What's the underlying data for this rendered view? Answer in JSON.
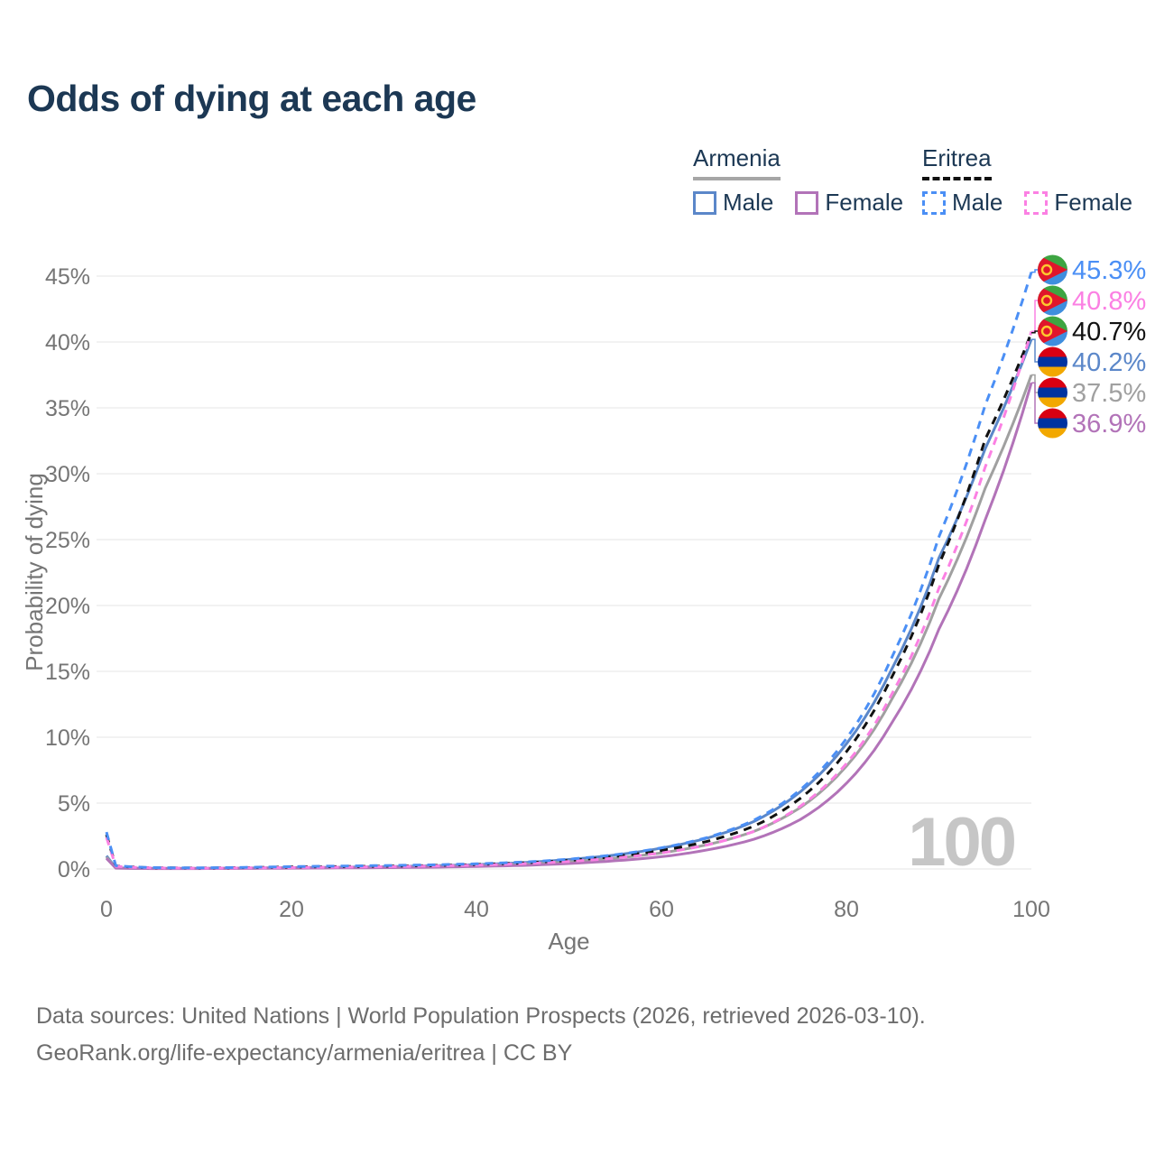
{
  "title": "Odds of dying at each age",
  "watermark": "100",
  "colors": {
    "title": "#1c3854",
    "axis_text": "#757575",
    "gridline": "#e9e9e9",
    "watermark": "#c6c6c6",
    "armenia_underline": "#a6a6a6",
    "eritrea_underline": "#111111"
  },
  "legend": {
    "groups": [
      {
        "label": "Armenia",
        "underline_style": "solid",
        "underline_color": "#a6a6a6",
        "items": [
          {
            "label": "Male",
            "color": "#5b87c9",
            "dash": false
          },
          {
            "label": "Female",
            "color": "#b273b8",
            "dash": false
          }
        ]
      },
      {
        "label": "Eritrea",
        "underline_style": "dashed",
        "underline_color": "#111111",
        "items": [
          {
            "label": "Male",
            "color": "#4b8ff5",
            "dash": true
          },
          {
            "label": "Female",
            "color": "#fb80e3",
            "dash": true
          }
        ]
      }
    ]
  },
  "footer": {
    "line1": "Data sources: United Nations | World Population Prospects (2026, retrieved 2026-03-10).",
    "line2": "GeoRank.org/life-expectancy/armenia/eritrea | CC BY"
  },
  "chart_data": {
    "type": "line",
    "title": "Odds of dying at each age",
    "xlabel": "Age",
    "ylabel": "Probability of dying",
    "xlim": [
      0,
      100
    ],
    "ylim_pct": [
      0,
      47
    ],
    "x_ticks": [
      0,
      20,
      40,
      60,
      80,
      100
    ],
    "y_ticks_pct": [
      0,
      5,
      10,
      15,
      20,
      25,
      30,
      35,
      40,
      45
    ],
    "grid": "horizontal-only",
    "legend_position": "top-right",
    "highlighted_age": "100",
    "x": [
      0,
      1,
      5,
      10,
      15,
      20,
      25,
      30,
      35,
      40,
      45,
      50,
      55,
      60,
      65,
      70,
      75,
      80,
      85,
      90,
      95,
      100
    ],
    "series": [
      {
        "name": "Eritrea Male",
        "slug": "eritrea-male",
        "country": "eritrea",
        "style": "dashed",
        "color": "#4b8ff5",
        "end_label": "45.3%",
        "values": [
          2.8,
          0.25,
          0.1,
          0.08,
          0.12,
          0.18,
          0.22,
          0.26,
          0.31,
          0.39,
          0.52,
          0.74,
          1.08,
          1.6,
          2.4,
          3.7,
          6.0,
          9.9,
          16.2,
          25.2,
          35.2,
          45.3
        ]
      },
      {
        "name": "Eritrea Female",
        "slug": "eritrea-female",
        "country": "eritrea",
        "style": "dashed",
        "color": "#fb80e3",
        "end_label": "40.8%",
        "values": [
          2.4,
          0.2,
          0.08,
          0.06,
          0.08,
          0.11,
          0.14,
          0.17,
          0.22,
          0.29,
          0.4,
          0.57,
          0.83,
          1.22,
          1.83,
          2.85,
          4.75,
          8.0,
          13.4,
          21.3,
          30.5,
          40.8
        ]
      },
      {
        "name": "Eritrea Both sexes",
        "slug": "eritrea-both",
        "country": "eritrea",
        "style": "dashed",
        "color": "#111111",
        "end_label": "40.7%",
        "values": [
          2.6,
          0.22,
          0.09,
          0.07,
          0.1,
          0.15,
          0.18,
          0.21,
          0.26,
          0.34,
          0.46,
          0.65,
          0.95,
          1.4,
          2.1,
          3.25,
          5.35,
          8.9,
          14.7,
          23.1,
          32.6,
          40.7
        ]
      },
      {
        "name": "Armenia Male",
        "slug": "armenia-male",
        "country": "armenia",
        "style": "solid",
        "color": "#5b87c9",
        "end_label": "40.2%",
        "values": [
          1.0,
          0.08,
          0.04,
          0.04,
          0.07,
          0.1,
          0.13,
          0.17,
          0.24,
          0.33,
          0.48,
          0.72,
          1.06,
          1.58,
          2.35,
          3.6,
          5.85,
          9.5,
          15.3,
          23.6,
          31.9,
          40.2
        ]
      },
      {
        "name": "Armenia Both sexes",
        "slug": "armenia-both",
        "country": "armenia",
        "style": "solid",
        "color": "#a0a0a0",
        "end_label": "37.5%",
        "values": [
          0.9,
          0.07,
          0.04,
          0.04,
          0.06,
          0.08,
          0.1,
          0.13,
          0.18,
          0.25,
          0.37,
          0.55,
          0.82,
          1.22,
          1.85,
          2.85,
          4.65,
          7.8,
          13.0,
          20.5,
          28.9,
          37.5
        ]
      },
      {
        "name": "Armenia Female",
        "slug": "armenia-female",
        "country": "armenia",
        "style": "solid",
        "color": "#b273b8",
        "end_label": "36.9%",
        "values": [
          0.8,
          0.06,
          0.03,
          0.03,
          0.04,
          0.06,
          0.08,
          0.1,
          0.13,
          0.19,
          0.27,
          0.41,
          0.62,
          0.93,
          1.45,
          2.25,
          3.75,
          6.5,
          11.2,
          18.2,
          26.5,
          36.9
        ]
      }
    ],
    "flag_colors": {
      "eritrea": {
        "green": "#3da542",
        "blue": "#3f8ede",
        "red": "#e0162b",
        "yellow": "#fdc82f"
      },
      "armenia": {
        "red": "#d90012",
        "blue": "#0033a0",
        "orange": "#f2a800"
      }
    }
  }
}
